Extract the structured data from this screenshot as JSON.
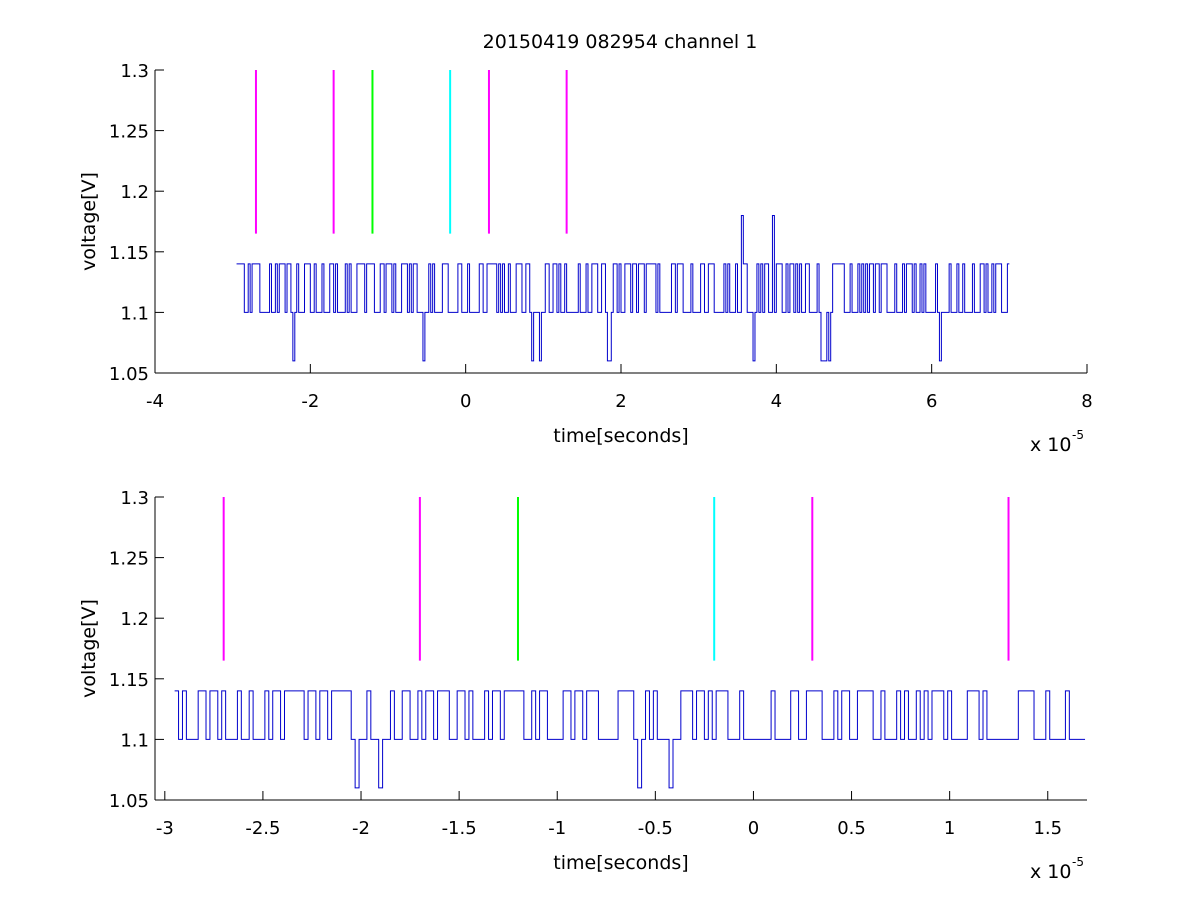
{
  "title": "20150419 082954 channel 1",
  "chart_data": [
    {
      "type": "line",
      "xlabel": "time[seconds]",
      "ylabel": "voltage[V]",
      "x_exponent_label": "x 10",
      "x_exponent_power": "-5",
      "xlim": [
        -4,
        8
      ],
      "ylim": [
        1.05,
        1.3
      ],
      "x_ticks": [
        "-4",
        "-2",
        "0",
        "2",
        "4",
        "6",
        "8"
      ],
      "y_ticks": [
        "1.05",
        "1.1",
        "1.15",
        "1.2",
        "1.25",
        "1.3"
      ],
      "x_tick_values": [
        -4,
        -2,
        0,
        2,
        4,
        6,
        8
      ],
      "y_tick_values": [
        1.05,
        1.1,
        1.15,
        1.2,
        1.25,
        1.3
      ],
      "signal": {
        "color": "#0000cc",
        "x_range": [
          -2.95,
          7.0
        ],
        "levels": [
          1.06,
          1.1,
          1.14
        ],
        "spikes": [
          {
            "x": 3.55,
            "y": 1.18
          },
          {
            "x": 3.95,
            "y": 1.18
          }
        ],
        "step": 0.025,
        "seed": 7
      },
      "markers": [
        {
          "x": -2.7,
          "color": "#ff00ff",
          "y_range": [
            1.165,
            1.3
          ]
        },
        {
          "x": -1.7,
          "color": "#ff00ff",
          "y_range": [
            1.165,
            1.3
          ]
        },
        {
          "x": -1.2,
          "color": "#00ff00",
          "y_range": [
            1.165,
            1.3
          ]
        },
        {
          "x": -0.2,
          "color": "#00ffff",
          "y_range": [
            1.165,
            1.3
          ]
        },
        {
          "x": 0.3,
          "color": "#ff00ff",
          "y_range": [
            1.165,
            1.3
          ]
        },
        {
          "x": 1.3,
          "color": "#ff00ff",
          "y_range": [
            1.165,
            1.3
          ]
        }
      ]
    },
    {
      "type": "line",
      "xlabel": "time[seconds]",
      "ylabel": "voltage[V]",
      "x_exponent_label": "x 10",
      "x_exponent_power": "-5",
      "xlim": [
        -3.05,
        1.7
      ],
      "ylim": [
        1.05,
        1.3
      ],
      "x_ticks": [
        "-3",
        "-2.5",
        "-2",
        "-1.5",
        "-1",
        "-0.5",
        "0",
        "0.5",
        "1",
        "1.5"
      ],
      "y_ticks": [
        "1.05",
        "1.1",
        "1.15",
        "1.2",
        "1.25",
        "1.3"
      ],
      "x_tick_values": [
        -3,
        -2.5,
        -2,
        -1.5,
        -1,
        -0.5,
        0,
        0.5,
        1,
        1.5
      ],
      "y_tick_values": [
        1.05,
        1.1,
        1.15,
        1.2,
        1.25,
        1.3
      ],
      "signal": {
        "color": "#0000cc",
        "x_range": [
          -2.95,
          1.7
        ],
        "levels": [
          1.06,
          1.1,
          1.14
        ],
        "spikes": [],
        "step": 0.02,
        "seed": 11
      },
      "markers": [
        {
          "x": -2.7,
          "color": "#ff00ff",
          "y_range": [
            1.165,
            1.3
          ]
        },
        {
          "x": -1.7,
          "color": "#ff00ff",
          "y_range": [
            1.165,
            1.3
          ]
        },
        {
          "x": -1.2,
          "color": "#00ff00",
          "y_range": [
            1.165,
            1.3
          ]
        },
        {
          "x": -0.2,
          "color": "#00ffff",
          "y_range": [
            1.165,
            1.3
          ]
        },
        {
          "x": 0.3,
          "color": "#ff00ff",
          "y_range": [
            1.165,
            1.3
          ]
        },
        {
          "x": 1.3,
          "color": "#ff00ff",
          "y_range": [
            1.165,
            1.3
          ]
        }
      ]
    }
  ]
}
